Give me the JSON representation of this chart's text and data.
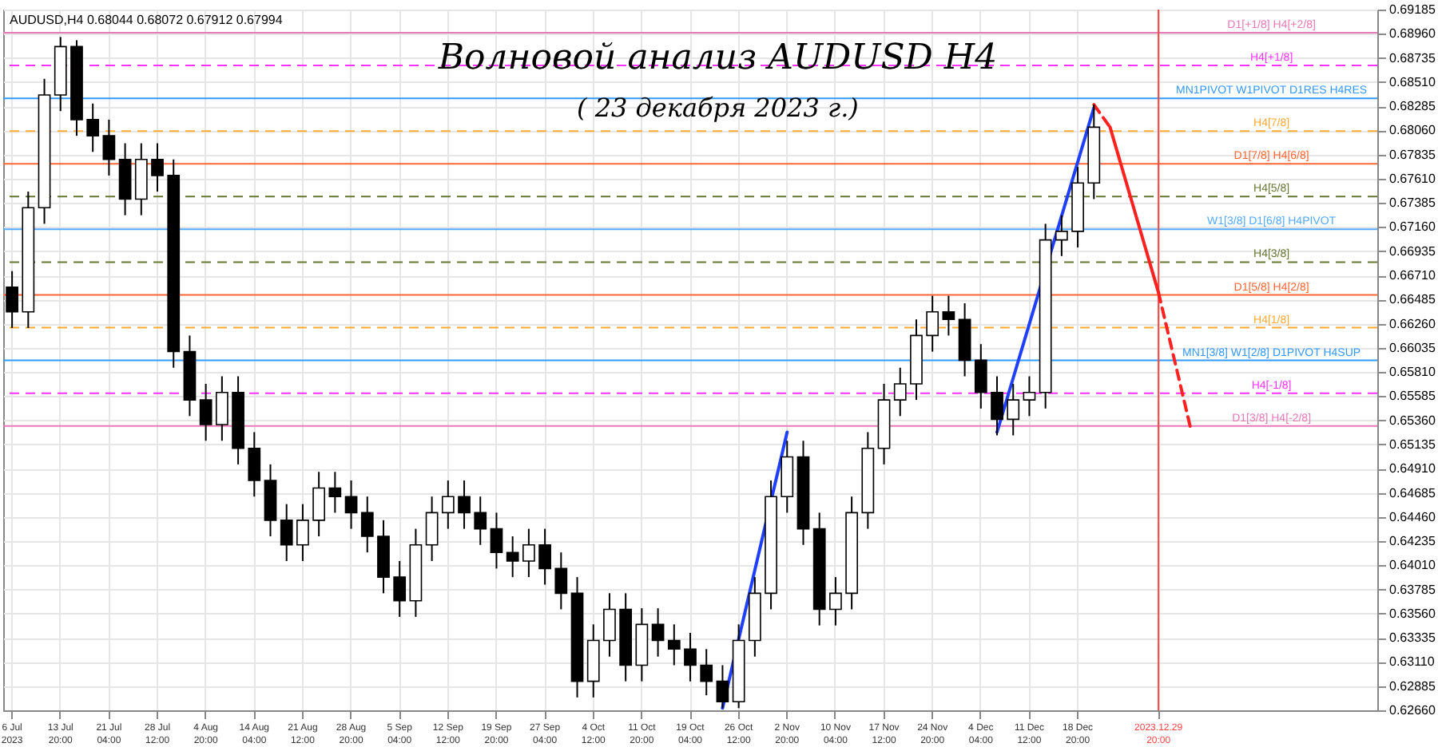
{
  "chart_data": {
    "type": "candlestick",
    "title": "Волновой анализ AUDUSD H4",
    "subtitle": "( 23 декабря 2023 г.)",
    "annotations": [
      "AUDUSD,H4  0.68044 0.68072 0.67912 0.67994"
    ],
    "categories": [
      "6 Jul 2023",
      null,
      null,
      "13 Jul 20:00",
      null,
      null,
      "21 Jul 04:00",
      null,
      null,
      "28 Jul 12:00",
      null,
      null,
      "4 Aug 20:00",
      null,
      null,
      "14 Aug 04:00",
      null,
      null,
      "21 Aug 12:00",
      null,
      null,
      "28 Aug 20:00",
      null,
      null,
      "5 Sep 04:00",
      null,
      null,
      "12 Sep 12:00",
      null,
      null,
      "19 Sep 20:00",
      null,
      null,
      "27 Sep 04:00",
      null,
      null,
      "4 Oct 12:00",
      null,
      null,
      "11 Oct 20:00",
      null,
      null,
      "19 Oct 04:00",
      null,
      null,
      "26 Oct 12:00",
      null,
      null,
      "2 Nov 20:00",
      null,
      null,
      "10 Nov 04:00",
      null,
      null,
      "17 Nov 12:00",
      null,
      null,
      "24 Nov 20:00",
      null,
      null,
      "4 Dec 04:00",
      null,
      null,
      "11 Dec 12:00",
      null,
      null,
      "18 Dec 20:00",
      null,
      null,
      null,
      null,
      "2023.12.29 20:00",
      null,
      null,
      null,
      null,
      null,
      null,
      null,
      null,
      null,
      null,
      null,
      null,
      null
    ],
    "series": [
      {
        "type": "candlestick",
        "color": "#000000",
        "ohlc": [
          [
            0.666,
            0.6675,
            0.6622,
            0.6637
          ],
          [
            0.6637,
            0.6749,
            0.6622,
            0.6734
          ],
          [
            0.6734,
            0.6854,
            0.6719,
            0.6839
          ],
          [
            0.6839,
            0.6893,
            0.6824,
            0.6884
          ],
          [
            0.6884,
            0.689,
            0.6801,
            0.6816
          ],
          [
            0.6816,
            0.6831,
            0.6786,
            0.6801
          ],
          [
            0.6801,
            0.6816,
            0.6764,
            0.6779
          ],
          [
            0.6779,
            0.6794,
            0.6727,
            0.6742
          ],
          [
            0.6742,
            0.6794,
            0.6727,
            0.6779
          ],
          [
            0.6779,
            0.6794,
            0.6749,
            0.6764
          ],
          [
            0.6764,
            0.6779,
            0.6585,
            0.66
          ],
          [
            0.66,
            0.6615,
            0.654,
            0.6555
          ],
          [
            0.6555,
            0.657,
            0.6517,
            0.6532
          ],
          [
            0.6532,
            0.6577,
            0.6517,
            0.6562
          ],
          [
            0.6562,
            0.6577,
            0.6495,
            0.651
          ],
          [
            0.651,
            0.6525,
            0.6465,
            0.648
          ],
          [
            0.648,
            0.6495,
            0.6428,
            0.6443
          ],
          [
            0.6443,
            0.6458,
            0.6405,
            0.642
          ],
          [
            0.642,
            0.6458,
            0.6405,
            0.6443
          ],
          [
            0.6443,
            0.6488,
            0.6428,
            0.6473
          ],
          [
            0.6473,
            0.6488,
            0.645,
            0.6465
          ],
          [
            0.6465,
            0.648,
            0.6435,
            0.645
          ],
          [
            0.645,
            0.6465,
            0.6413,
            0.6428
          ],
          [
            0.6428,
            0.6443,
            0.6375,
            0.639
          ],
          [
            0.639,
            0.6405,
            0.6353,
            0.6368
          ],
          [
            0.6368,
            0.6435,
            0.6353,
            0.642
          ],
          [
            0.642,
            0.6465,
            0.6405,
            0.645
          ],
          [
            0.645,
            0.648,
            0.6435,
            0.6465
          ],
          [
            0.6465,
            0.648,
            0.6435,
            0.645
          ],
          [
            0.645,
            0.6465,
            0.642,
            0.6435
          ],
          [
            0.6435,
            0.645,
            0.6398,
            0.6413
          ],
          [
            0.6413,
            0.6428,
            0.639,
            0.6405
          ],
          [
            0.6405,
            0.6435,
            0.639,
            0.642
          ],
          [
            0.642,
            0.6435,
            0.6383,
            0.6398
          ],
          [
            0.6398,
            0.6413,
            0.636,
            0.6375
          ],
          [
            0.6375,
            0.639,
            0.6278,
            0.6293
          ],
          [
            0.6293,
            0.6346,
            0.6278,
            0.6331
          ],
          [
            0.6331,
            0.6375,
            0.6316,
            0.636
          ],
          [
            0.636,
            0.6375,
            0.6293,
            0.6308
          ],
          [
            0.6308,
            0.6361,
            0.6293,
            0.6346
          ],
          [
            0.6346,
            0.6361,
            0.6316,
            0.6331
          ],
          [
            0.6331,
            0.6346,
            0.6308,
            0.6323
          ],
          [
            0.6323,
            0.6338,
            0.6293,
            0.6308
          ],
          [
            0.6308,
            0.6323,
            0.628,
            0.6293
          ],
          [
            0.6293,
            0.6308,
            0.6268,
            0.6274
          ],
          [
            0.6274,
            0.6346,
            0.6268,
            0.6331
          ],
          [
            0.6331,
            0.639,
            0.6316,
            0.6375
          ],
          [
            0.6375,
            0.648,
            0.636,
            0.6465
          ],
          [
            0.6465,
            0.6517,
            0.645,
            0.6502
          ],
          [
            0.6502,
            0.6517,
            0.642,
            0.6435
          ],
          [
            0.6435,
            0.645,
            0.6345,
            0.636
          ],
          [
            0.636,
            0.639,
            0.6345,
            0.6375
          ],
          [
            0.6375,
            0.6465,
            0.636,
            0.645
          ],
          [
            0.645,
            0.6525,
            0.6435,
            0.651
          ],
          [
            0.651,
            0.657,
            0.6495,
            0.6555
          ],
          [
            0.6555,
            0.6585,
            0.654,
            0.657
          ],
          [
            0.657,
            0.663,
            0.6555,
            0.6615
          ],
          [
            0.6615,
            0.6652,
            0.66,
            0.6637
          ],
          [
            0.6637,
            0.6652,
            0.6615,
            0.663
          ],
          [
            0.663,
            0.6645,
            0.6577,
            0.6592
          ],
          [
            0.6592,
            0.6607,
            0.6547,
            0.6562
          ],
          [
            0.6562,
            0.6577,
            0.6522,
            0.6537
          ],
          [
            0.6537,
            0.657,
            0.6522,
            0.6555
          ],
          [
            0.6555,
            0.6577,
            0.654,
            0.6562
          ],
          [
            0.6562,
            0.6719,
            0.6547,
            0.6704
          ],
          [
            0.6704,
            0.6727,
            0.6689,
            0.6712
          ],
          [
            0.6712,
            0.6772,
            0.6697,
            0.6757
          ],
          [
            0.6757,
            0.683,
            0.6742,
            0.6809
          ],
          null,
          null,
          null,
          null,
          null,
          null,
          null,
          null,
          null,
          null,
          null,
          null,
          null,
          null,
          null,
          null,
          null
        ]
      },
      {
        "type": "line",
        "color": "#1f3fff",
        "line_style": "solid",
        "values": [
          null,
          null,
          null,
          null,
          null,
          null,
          null,
          null,
          null,
          null,
          null,
          null,
          null,
          null,
          null,
          null,
          null,
          null,
          null,
          null,
          null,
          null,
          null,
          null,
          null,
          null,
          null,
          null,
          null,
          null,
          null,
          null,
          null,
          null,
          null,
          null,
          null,
          null,
          null,
          null,
          null,
          null,
          null,
          null,
          0.6268,
          null,
          null,
          null,
          0.6525,
          null,
          null,
          null,
          null,
          null,
          null,
          null,
          null,
          null,
          null,
          null,
          null,
          null,
          null,
          null,
          null,
          null,
          null,
          null,
          null,
          null,
          null,
          null,
          null,
          null,
          null,
          null,
          null,
          null,
          null,
          null,
          null,
          null,
          null,
          null,
          null
        ]
      },
      {
        "type": "line",
        "color": "#1f3fff",
        "line_style": "solid",
        "values": [
          null,
          null,
          null,
          null,
          null,
          null,
          null,
          null,
          null,
          null,
          null,
          null,
          null,
          null,
          null,
          null,
          null,
          null,
          null,
          null,
          null,
          null,
          null,
          null,
          null,
          null,
          null,
          null,
          null,
          null,
          null,
          null,
          null,
          null,
          null,
          null,
          null,
          null,
          null,
          null,
          null,
          null,
          null,
          null,
          null,
          null,
          null,
          null,
          null,
          null,
          null,
          null,
          null,
          null,
          null,
          null,
          null,
          null,
          null,
          null,
          null,
          0.6525,
          null,
          null,
          null,
          null,
          null,
          0.6827,
          null,
          null,
          null,
          null,
          null,
          null,
          null,
          null,
          null,
          null,
          null,
          null,
          null,
          null,
          null,
          null,
          null
        ]
      },
      {
        "type": "line",
        "color": "#ff2020",
        "line_style": "dashed",
        "values": [
          null,
          null,
          null,
          null,
          null,
          null,
          null,
          null,
          null,
          null,
          null,
          null,
          null,
          null,
          null,
          null,
          null,
          null,
          null,
          null,
          null,
          null,
          null,
          null,
          null,
          null,
          null,
          null,
          null,
          null,
          null,
          null,
          null,
          null,
          null,
          null,
          null,
          null,
          null,
          null,
          null,
          null,
          null,
          null,
          null,
          null,
          null,
          null,
          null,
          null,
          null,
          null,
          null,
          null,
          null,
          null,
          null,
          null,
          null,
          null,
          null,
          null,
          null,
          null,
          null,
          null,
          null,
          0.683,
          0.6809,
          null,
          null,
          null,
          null,
          null,
          null,
          null,
          null,
          null,
          null,
          null,
          null,
          null,
          null,
          null,
          null
        ]
      },
      {
        "type": "line",
        "color": "#ff2020",
        "line_style": "solid",
        "values": [
          null,
          null,
          null,
          null,
          null,
          null,
          null,
          null,
          null,
          null,
          null,
          null,
          null,
          null,
          null,
          null,
          null,
          null,
          null,
          null,
          null,
          null,
          null,
          null,
          null,
          null,
          null,
          null,
          null,
          null,
          null,
          null,
          null,
          null,
          null,
          null,
          null,
          null,
          null,
          null,
          null,
          null,
          null,
          null,
          null,
          null,
          null,
          null,
          null,
          null,
          null,
          null,
          null,
          null,
          null,
          null,
          null,
          null,
          null,
          null,
          null,
          null,
          null,
          null,
          null,
          null,
          null,
          null,
          0.6809,
          null,
          null,
          0.6655,
          null,
          null,
          null,
          null,
          null,
          null,
          null,
          null,
          null,
          null,
          null,
          null,
          null
        ]
      },
      {
        "type": "line",
        "color": "#ff2020",
        "line_style": "dashed",
        "values": [
          null,
          null,
          null,
          null,
          null,
          null,
          null,
          null,
          null,
          null,
          null,
          null,
          null,
          null,
          null,
          null,
          null,
          null,
          null,
          null,
          null,
          null,
          null,
          null,
          null,
          null,
          null,
          null,
          null,
          null,
          null,
          null,
          null,
          null,
          null,
          null,
          null,
          null,
          null,
          null,
          null,
          null,
          null,
          null,
          null,
          null,
          null,
          null,
          null,
          null,
          null,
          null,
          null,
          null,
          null,
          null,
          null,
          null,
          null,
          null,
          null,
          null,
          null,
          null,
          null,
          null,
          null,
          null,
          null,
          null,
          null,
          0.6655,
          null,
          0.6528,
          null,
          null,
          null,
          null,
          null,
          null,
          null,
          null,
          null,
          null,
          null
        ]
      }
    ],
    "ylim": [
      0.6266,
      0.69185
    ],
    "yticks": [
      {
        "value": 0.6266,
        "label": "0.62660"
      },
      {
        "value": 0.62885,
        "label": "0.62885"
      },
      {
        "value": 0.6311,
        "label": "0.63110"
      },
      {
        "value": 0.63335,
        "label": "0.63335"
      },
      {
        "value": 0.6356,
        "label": "0.63560"
      },
      {
        "value": 0.63785,
        "label": "0.63785"
      },
      {
        "value": 0.6401,
        "label": "0.64010"
      },
      {
        "value": 0.64235,
        "label": "0.64235"
      },
      {
        "value": 0.6446,
        "label": "0.64460"
      },
      {
        "value": 0.64685,
        "label": "0.64685"
      },
      {
        "value": 0.6491,
        "label": "0.64910"
      },
      {
        "value": 0.65135,
        "label": "0.65135"
      },
      {
        "value": 0.6536,
        "label": "0.65360"
      },
      {
        "value": 0.65585,
        "label": "0.65585"
      },
      {
        "value": 0.6581,
        "label": "0.65810"
      },
      {
        "value": 0.66035,
        "label": "0.66035"
      },
      {
        "value": 0.6626,
        "label": "0.66260"
      },
      {
        "value": 0.66485,
        "label": "0.66485"
      },
      {
        "value": 0.6671,
        "label": "0.66710"
      },
      {
        "value": 0.66935,
        "label": "0.66935"
      },
      {
        "value": 0.6716,
        "label": "0.67160"
      },
      {
        "value": 0.67385,
        "label": "0.67385"
      },
      {
        "value": 0.6761,
        "label": "0.67610"
      },
      {
        "value": 0.67835,
        "label": "0.67835"
      },
      {
        "value": 0.6806,
        "label": "0.68060"
      },
      {
        "value": 0.68285,
        "label": "0.68285"
      },
      {
        "value": 0.6851,
        "label": "0.68510"
      },
      {
        "value": 0.68735,
        "label": "0.68735"
      },
      {
        "value": 0.6896,
        "label": "0.68960"
      },
      {
        "value": 0.69185,
        "label": "0.69185"
      }
    ],
    "ref_lines": [
      {
        "axis": "y",
        "value": 0.6897,
        "label": "D1[+1/8] H4[+2/8]",
        "color": "#e879b8",
        "line_style": "solid"
      },
      {
        "axis": "y",
        "value": 0.68665,
        "label": "H4[+1/8]",
        "color": "#ff33ff",
        "line_style": "dashed"
      },
      {
        "axis": "y",
        "value": 0.68359,
        "label": "MN1PIVOT W1PIVOT D1RES H4RES",
        "color": "#3399ff",
        "line_style": "solid"
      },
      {
        "axis": "y",
        "value": 0.68054,
        "label": "H4[7/8]",
        "color": "#ffaa33",
        "line_style": "dashed"
      },
      {
        "axis": "y",
        "value": 0.67749,
        "label": "D1[7/8] H4[6/8]",
        "color": "#ff6633",
        "line_style": "solid"
      },
      {
        "axis": "y",
        "value": 0.67444,
        "label": "H4[5/8]",
        "color": "#667733",
        "line_style": "dashed"
      },
      {
        "axis": "y",
        "value": 0.67139,
        "label": "W1[3/8] D1[6/8] H4PIVOT",
        "color": "#55aaff",
        "line_style": "solid"
      },
      {
        "axis": "y",
        "value": 0.66833,
        "label": "H4[3/8]",
        "color": "#667733",
        "line_style": "dashed"
      },
      {
        "axis": "y",
        "value": 0.66528,
        "label": "D1[5/8] H4[2/8]",
        "color": "#ff6633",
        "line_style": "solid"
      },
      {
        "axis": "y",
        "value": 0.66223,
        "label": "H4[1/8]",
        "color": "#ffaa33",
        "line_style": "dashed"
      },
      {
        "axis": "y",
        "value": 0.65918,
        "label": "MN1[3/8] W1[2/8] D1PIVOT H4SUP",
        "color": "#3399ff",
        "line_style": "solid"
      },
      {
        "axis": "y",
        "value": 0.65613,
        "label": "H4[-1/8]",
        "color": "#ff33ff",
        "line_style": "dashed"
      },
      {
        "axis": "y",
        "value": 0.65308,
        "label": "D1[3/8] H4[-2/8]",
        "color": "#e879b8",
        "line_style": "solid"
      },
      {
        "axis": "x",
        "value": "2023.12.29 20:00",
        "label": null,
        "color": "#ff4444",
        "line_style": "solid"
      }
    ],
    "grid": true
  }
}
